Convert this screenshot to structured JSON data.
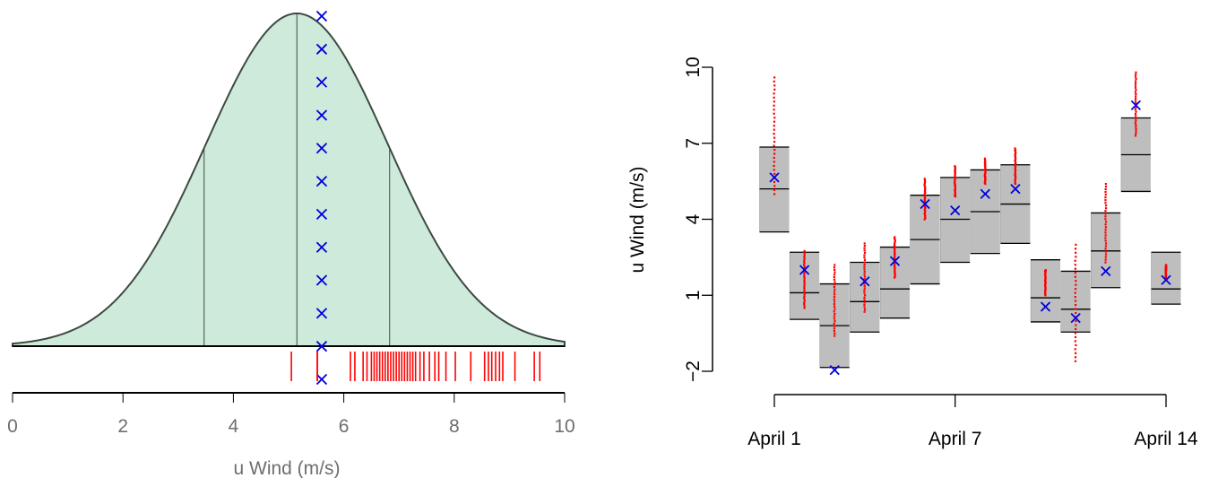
{
  "chart_data": [
    {
      "type": "area",
      "panel": "left",
      "xlabel": "u Wind (m/s)",
      "ylabel": "",
      "xlim": [
        0,
        10
      ],
      "xticks": [
        0,
        2,
        4,
        6,
        8,
        10
      ],
      "density": {
        "mean": 5.15,
        "sd": 1.65,
        "fill": "#cdeadb",
        "stroke": "#3d4a40"
      },
      "quantile_lines": [
        3.47,
        5.15,
        6.83
      ],
      "observation_x": 5.6,
      "observation_marks": 12,
      "observed_value_tick": 5.52,
      "ensemble_rug": [
        5.05,
        5.52,
        6.12,
        6.2,
        6.35,
        6.42,
        6.5,
        6.55,
        6.6,
        6.65,
        6.7,
        6.75,
        6.8,
        6.85,
        6.9,
        6.95,
        7.0,
        7.05,
        7.1,
        7.15,
        7.2,
        7.25,
        7.3,
        7.38,
        7.45,
        7.55,
        7.65,
        7.72,
        7.85,
        8.02,
        8.3,
        8.55,
        8.62,
        8.68,
        8.75,
        8.82,
        8.88,
        9.1,
        9.45,
        9.55
      ]
    },
    {
      "type": "boxes",
      "panel": "right",
      "ylabel": "u Wind (m/s)",
      "xlabel": "",
      "ylim": [
        -2,
        10
      ],
      "yticks": [
        -2,
        1,
        4,
        7,
        10
      ],
      "xticks": [
        {
          "day": 1,
          "label": "April 1"
        },
        {
          "day": 7,
          "label": "April 7"
        },
        {
          "day": 14,
          "label": "April 14"
        }
      ],
      "days": [
        {
          "day": 1,
          "low": 3.5,
          "mid": 5.2,
          "high": 6.85,
          "obs": 5.65,
          "ens": [
            5.0,
            9.6
          ]
        },
        {
          "day": 2,
          "low": 0.05,
          "mid": 1.1,
          "high": 2.7,
          "obs": 2.0,
          "ens": [
            0.5,
            2.75
          ]
        },
        {
          "day": 3,
          "low": -1.85,
          "mid": -0.2,
          "high": 1.45,
          "obs": -1.95,
          "ens": [
            -0.6,
            2.2
          ]
        },
        {
          "day": 4,
          "low": -0.45,
          "mid": 0.75,
          "high": 2.3,
          "obs": 1.55,
          "ens": [
            0.35,
            3.05
          ]
        },
        {
          "day": 5,
          "low": 0.1,
          "mid": 1.25,
          "high": 2.9,
          "obs": 2.35,
          "ens": [
            1.7,
            3.3
          ]
        },
        {
          "day": 6,
          "low": 1.45,
          "mid": 3.2,
          "high": 4.95,
          "obs": 4.6,
          "ens": [
            4.0,
            5.6
          ]
        },
        {
          "day": 7,
          "low": 2.3,
          "mid": 4.0,
          "high": 5.65,
          "obs": 4.35,
          "ens": [
            4.9,
            6.1
          ]
        },
        {
          "day": 8,
          "low": 2.65,
          "mid": 4.3,
          "high": 5.95,
          "obs": 5.0,
          "ens": [
            5.4,
            6.4
          ]
        },
        {
          "day": 9,
          "low": 3.05,
          "mid": 4.6,
          "high": 6.15,
          "obs": 5.2,
          "ens": [
            5.4,
            6.8
          ]
        },
        {
          "day": 10,
          "low": -0.05,
          "mid": 0.9,
          "high": 2.4,
          "obs": 0.55,
          "ens": [
            1.0,
            2.0
          ]
        },
        {
          "day": 11,
          "low": -0.45,
          "mid": 0.45,
          "high": 1.95,
          "obs": 0.1,
          "ens": [
            -1.6,
            3.0
          ]
        },
        {
          "day": 12,
          "low": 1.3,
          "mid": 2.75,
          "high": 4.25,
          "obs": 1.95,
          "ens": [
            2.3,
            5.4
          ]
        },
        {
          "day": 13,
          "low": 5.1,
          "mid": 6.55,
          "high": 8.0,
          "obs": 8.5,
          "ens": [
            7.3,
            9.8
          ]
        },
        {
          "day": 14,
          "low": 0.65,
          "mid": 1.25,
          "high": 2.7,
          "obs": 1.6,
          "ens": [
            1.6,
            2.2
          ]
        }
      ],
      "box_fill": "#bebebe",
      "ensemble_color": "#ff0000",
      "observation_color": "#0000dd"
    }
  ]
}
